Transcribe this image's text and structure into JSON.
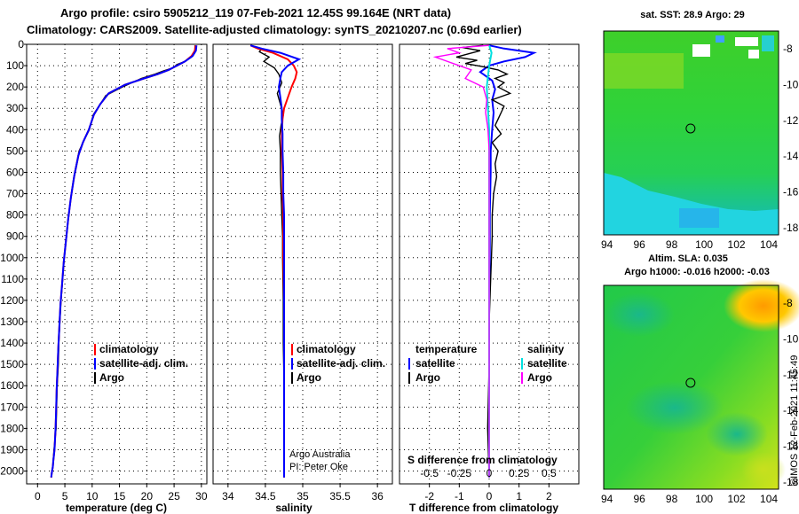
{
  "header": {
    "line1": "Argo profile: csiro 5905212_119 07-Feb-2021 12.45S 99.164E (NRT data)",
    "line2": "Climatology: CARS2009. Satellite-adjusted climatology: synTS_20210207.nc (0.69d earlier)"
  },
  "colors": {
    "climatology": "#ff0000",
    "satellite": "#0000ff",
    "argo": "#000000",
    "satellite_s": "#00e0e0",
    "argo_s": "#ff00ff"
  },
  "credits": {
    "line1": "Argo Australia",
    "line2": "PI: Peter Oke",
    "imos": "©IMOS 12-Feb-2021 11:45:49"
  },
  "maps": {
    "sst_title": "sat. SST: 28.9 Argo: 29",
    "sla_title1": "Altim. SLA: 0.035",
    "sla_title2": "Argo h1000: -0.016 h2000: -0.03",
    "lon_ticks": [
      "94",
      "96",
      "98",
      "100",
      "102",
      "104"
    ],
    "lat_ticks": [
      "-8",
      "-10",
      "-12",
      "-14",
      "-16",
      "-18"
    ],
    "float_lon": 99.164,
    "float_lat": -12.45
  },
  "chart_data": [
    {
      "type": "line",
      "name": "temperature",
      "xlabel": "temperature (deg C)",
      "ylabel": "",
      "xlim": [
        -2,
        31
      ],
      "ylim": [
        2060,
        0
      ],
      "xticks": [
        0,
        5,
        10,
        15,
        20,
        25,
        30
      ],
      "xtick_labels": [
        "0",
        "5",
        "10",
        "15",
        "20",
        "25",
        "30"
      ],
      "yticks": [
        0,
        100,
        200,
        300,
        400,
        500,
        600,
        700,
        800,
        900,
        1000,
        1100,
        1200,
        1300,
        1400,
        1500,
        1600,
        1700,
        1800,
        1900,
        2000
      ],
      "ytick_labels": [
        "0",
        "100",
        "200",
        "300",
        "400",
        "500",
        "600",
        "700",
        "800",
        "900",
        "1000",
        "1100",
        "1200",
        "1300",
        "1400",
        "1500",
        "1600",
        "1700",
        "1800",
        "1900",
        "2000"
      ],
      "legend": [
        "climatology",
        "satellite-adj. clim.",
        "Argo"
      ],
      "series": [
        {
          "name": "Argo",
          "x": [
            28.8,
            28.9,
            28.6,
            28.2,
            27.0,
            25.5,
            24.8,
            23.0,
            21.5,
            19.0,
            15.5,
            12.5,
            11.5,
            10.2,
            9.5,
            8.5,
            7.6,
            6.8,
            6.2,
            5.7,
            5.3,
            4.9,
            4.6,
            4.3,
            4.1,
            3.9,
            3.8,
            3.6,
            3.5,
            3.4,
            3.2,
            3.0,
            2.9,
            2.85,
            2.8,
            2.6,
            2.5
          ],
          "y": [
            5,
            20,
            40,
            60,
            80,
            95,
            110,
            125,
            140,
            160,
            200,
            240,
            280,
            330,
            400,
            450,
            500,
            600,
            700,
            800,
            900,
            1000,
            1100,
            1200,
            1300,
            1400,
            1500,
            1600,
            1700,
            1800,
            1850,
            1900,
            1940,
            1960,
            1980,
            2000,
            2030
          ]
        },
        {
          "name": "climatology",
          "x": [
            28.9,
            28.8,
            28.2,
            27.0,
            25.5,
            24.0,
            22.0,
            19.5,
            16.0,
            13.0,
            11.5,
            10.3,
            9.4,
            8.3,
            7.5,
            6.7,
            6.1,
            5.6,
            5.2,
            4.8,
            4.5,
            4.2,
            4.0,
            3.8,
            3.65,
            3.5,
            3.4,
            3.3,
            3.2,
            3.1,
            2.9,
            2.8,
            2.6,
            2.5
          ],
          "y": [
            5,
            30,
            55,
            80,
            100,
            120,
            140,
            160,
            190,
            230,
            280,
            330,
            400,
            460,
            520,
            620,
            720,
            820,
            920,
            1020,
            1120,
            1220,
            1320,
            1420,
            1520,
            1620,
            1720,
            1800,
            1850,
            1900,
            1950,
            1980,
            2010,
            2030
          ]
        },
        {
          "name": "satellite-adj. clim.",
          "x": [
            29.1,
            29.0,
            28.4,
            27.0,
            25.5,
            24.0,
            22.0,
            19.5,
            16.0,
            13.0,
            11.5,
            10.3,
            9.4,
            8.3,
            7.5,
            6.7,
            6.1,
            5.6,
            5.2,
            4.8,
            4.5,
            4.2,
            4.0,
            3.8,
            3.65,
            3.5,
            3.4,
            3.3,
            3.2,
            3.1,
            2.9,
            2.8,
            2.6,
            2.5
          ],
          "y": [
            5,
            30,
            55,
            80,
            100,
            120,
            140,
            160,
            190,
            230,
            280,
            330,
            400,
            460,
            520,
            620,
            720,
            820,
            920,
            1020,
            1120,
            1220,
            1320,
            1420,
            1520,
            1620,
            1720,
            1800,
            1850,
            1900,
            1950,
            1980,
            2010,
            2030
          ]
        }
      ]
    },
    {
      "type": "line",
      "name": "salinity",
      "xlabel": "salinity",
      "xlim": [
        33.8,
        36.2
      ],
      "ylim": [
        2060,
        0
      ],
      "xticks": [
        34,
        34.5,
        35,
        35.5,
        36
      ],
      "xtick_labels": [
        "34",
        "34.5",
        "35",
        "35.5",
        "36"
      ],
      "legend": [
        "climatology",
        "satellite-adj. clim.",
        "Argo"
      ],
      "series": [
        {
          "name": "Argo",
          "x": [
            34.3,
            34.45,
            34.42,
            34.55,
            34.48,
            34.62,
            34.68,
            34.72,
            34.66,
            34.7,
            34.74,
            34.71,
            34.69,
            34.7,
            34.7,
            34.71,
            34.72,
            34.73,
            34.73,
            34.74,
            34.74,
            34.75,
            34.75,
            34.75,
            34.75,
            34.75
          ],
          "y": [
            5,
            20,
            35,
            60,
            80,
            110,
            140,
            180,
            230,
            280,
            330,
            380,
            430,
            500,
            600,
            700,
            800,
            900,
            1000,
            1200,
            1400,
            1600,
            1800,
            1900,
            2000,
            2030
          ]
        },
        {
          "name": "climatology",
          "x": [
            34.3,
            34.4,
            34.6,
            34.8,
            34.88,
            34.92,
            34.9,
            34.85,
            34.8,
            34.75,
            34.73,
            34.72,
            34.72,
            34.73,
            34.73,
            34.74,
            34.74,
            34.75,
            34.75,
            34.75,
            34.75,
            34.75
          ],
          "y": [
            5,
            20,
            40,
            70,
            100,
            130,
            160,
            200,
            250,
            300,
            350,
            420,
            500,
            600,
            700,
            800,
            1000,
            1200,
            1400,
            1600,
            1800,
            2030
          ]
        },
        {
          "name": "satellite-adj. clim.",
          "x": [
            34.3,
            34.45,
            34.7,
            34.95,
            34.8,
            34.72,
            34.7,
            34.68,
            34.7,
            34.72,
            34.72,
            34.73,
            34.73,
            34.74,
            34.74,
            34.75,
            34.75,
            34.75,
            34.75,
            34.75,
            34.75
          ],
          "y": [
            5,
            20,
            40,
            70,
            100,
            130,
            160,
            200,
            250,
            300,
            350,
            420,
            500,
            600,
            700,
            800,
            1000,
            1200,
            1400,
            1600,
            2030
          ]
        }
      ]
    },
    {
      "type": "line",
      "name": "difference",
      "xlabel": "T difference from climatology",
      "xlim": [
        -3,
        3
      ],
      "ylim": [
        2060,
        0
      ],
      "xticks": [
        -2,
        -1,
        0,
        1,
        2
      ],
      "xtick_labels": [
        "-2",
        "-1",
        "0",
        "1",
        "2"
      ],
      "secondary_axis_title": "S difference from climatology",
      "secondary_ticks": [
        -0.5,
        -0.25,
        0,
        0.25,
        0.5
      ],
      "secondary_tick_labels": [
        "-0.5",
        "-0.25",
        "0",
        "0.25",
        "0.5"
      ],
      "legend_t_title": "temperature",
      "legend_s_title": "salinity",
      "legend": [
        "satellite",
        "Argo"
      ],
      "series": [
        {
          "name": "T satellite",
          "x": [
            0.0,
            0.5,
            1.5,
            1.2,
            0.5,
            0.0,
            -0.3,
            0.1,
            0.2,
            0.1,
            0.15,
            0.1,
            0.05,
            0.05,
            0.02,
            0.02,
            0.0,
            0.0,
            0.0,
            0.0
          ],
          "y": [
            5,
            20,
            40,
            60,
            80,
            100,
            130,
            170,
            210,
            260,
            320,
            400,
            500,
            600,
            800,
            1000,
            1200,
            1500,
            1800,
            2030
          ]
        },
        {
          "name": "T Argo",
          "x": [
            -0.2,
            -0.9,
            -0.3,
            -0.7,
            -1.1,
            -0.4,
            -0.8,
            -0.2,
            0.3,
            0.6,
            0.2,
            0.5,
            0.3,
            0.7,
            0.1,
            0.5,
            0.4,
            0.3,
            0.2,
            0.4,
            0.1,
            0.3,
            0.2,
            0.25,
            0.15,
            0.1,
            0.1,
            0.05,
            0.0,
            0.0,
            -0.05,
            0.0
          ],
          "y": [
            5,
            15,
            30,
            45,
            60,
            75,
            90,
            105,
            120,
            140,
            160,
            180,
            200,
            230,
            260,
            290,
            320,
            350,
            380,
            420,
            460,
            500,
            560,
            620,
            700,
            800,
            900,
            1100,
            1300,
            1500,
            1800,
            2030
          ]
        },
        {
          "name": "S satellite",
          "x": [
            0.0,
            0.02,
            0.0,
            -0.02,
            0.0,
            0.0,
            0.0,
            0.0,
            0.0
          ],
          "y": [
            5,
            40,
            100,
            200,
            400,
            600,
            1000,
            1500,
            2030
          ]
        },
        {
          "name": "S Argo",
          "x": [
            0.0,
            -0.35,
            -0.25,
            -0.45,
            -0.3,
            -0.15,
            -0.2,
            -0.05,
            -0.02,
            -0.03,
            -0.01,
            0.0,
            0.0,
            0.0,
            0.0,
            0.0
          ],
          "y": [
            5,
            20,
            40,
            60,
            90,
            120,
            160,
            200,
            260,
            320,
            400,
            500,
            700,
            1000,
            1500,
            2030
          ]
        }
      ]
    }
  ]
}
